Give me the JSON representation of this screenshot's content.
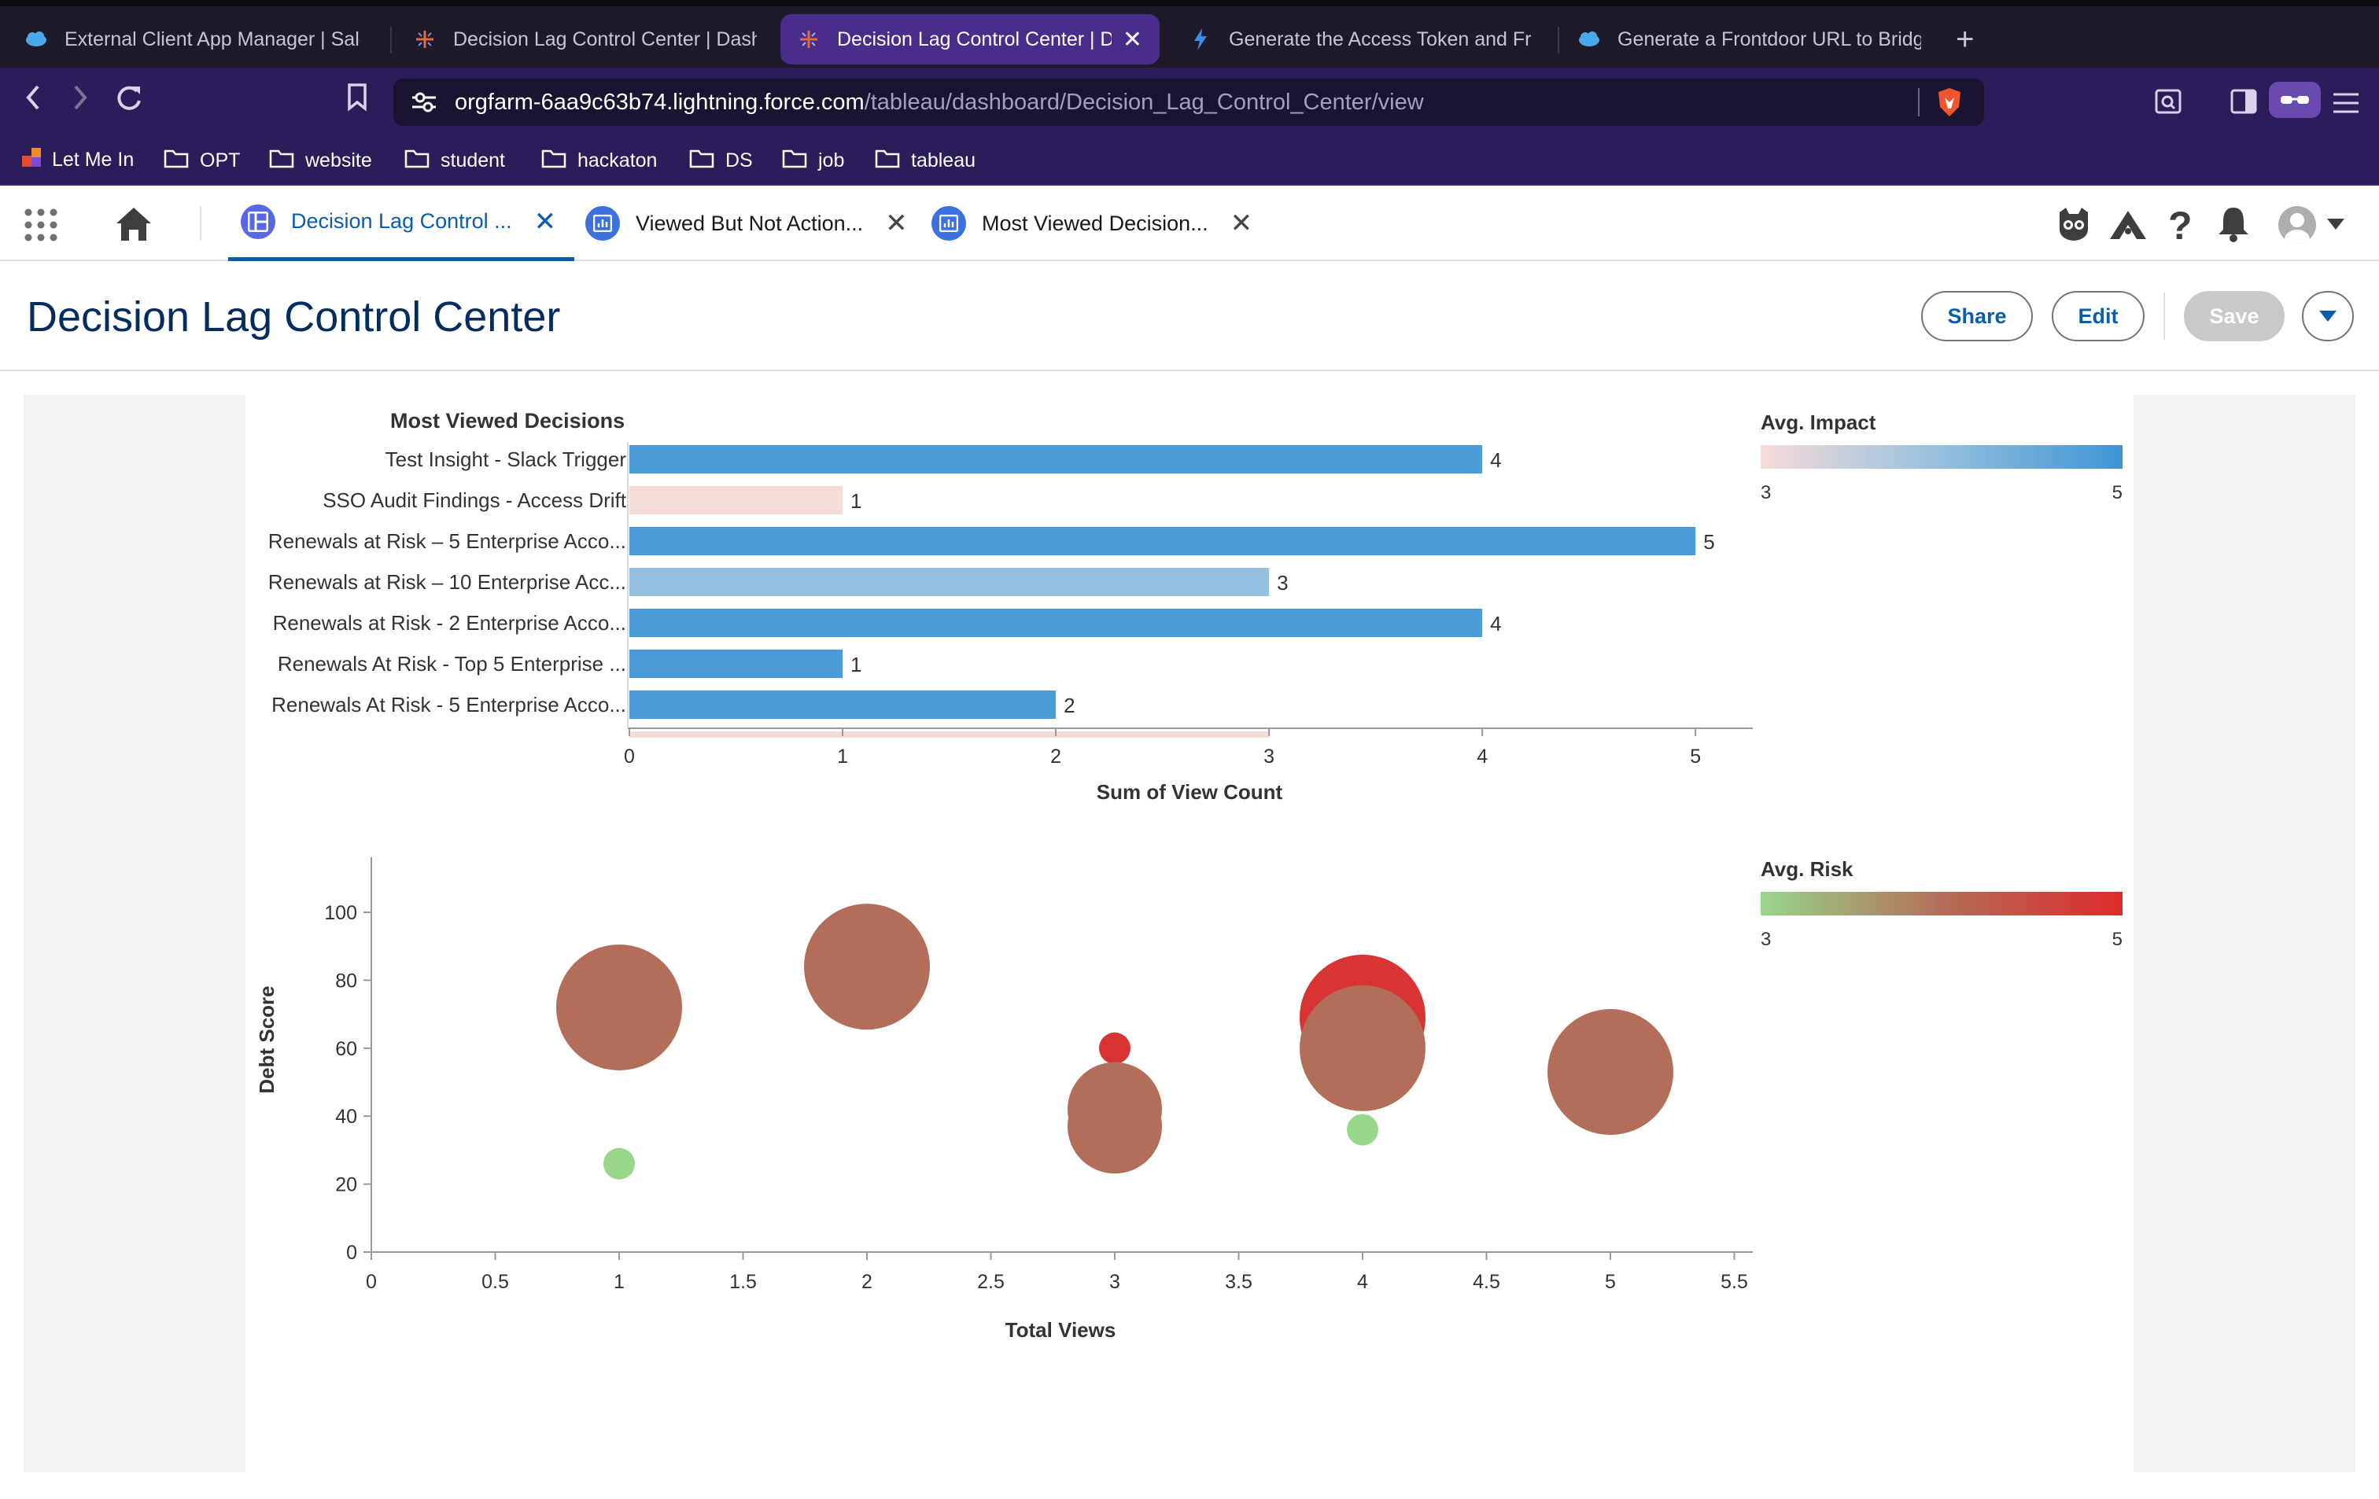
{
  "browser": {
    "tabs": [
      {
        "title": "External Client App Manager | Sale",
        "icon": "salesforce-cloud-icon",
        "active": false
      },
      {
        "title": "Decision Lag Control Center | Dash",
        "icon": "tableau-icon",
        "active": false
      },
      {
        "title": "Decision Lag Control Center | D",
        "icon": "tableau-icon",
        "active": true
      },
      {
        "title": "Generate the Access Token and Fr",
        "icon": "lightning-icon",
        "active": false
      },
      {
        "title": "Generate a Frontdoor URL to Bridg",
        "icon": "salesforce-cloud-icon",
        "active": false
      }
    ],
    "url_host": "orgfarm-6aa9c63b74.lightning.force.com",
    "url_path": "/tableau/dashboard/Decision_Lag_Control_Center/view",
    "bookmarks": [
      {
        "label": "Let Me In",
        "icon": "app-icon"
      },
      {
        "label": "OPT",
        "icon": "folder-icon"
      },
      {
        "label": "website",
        "icon": "folder-icon"
      },
      {
        "label": "student",
        "icon": "folder-icon"
      },
      {
        "label": "hackaton",
        "icon": "folder-icon"
      },
      {
        "label": "DS",
        "icon": "folder-icon"
      },
      {
        "label": "job",
        "icon": "folder-icon"
      },
      {
        "label": "tableau",
        "icon": "folder-icon"
      }
    ]
  },
  "workspace_tabs": [
    {
      "label": "Decision Lag Control ...",
      "active": true
    },
    {
      "label": "Viewed But Not Action...",
      "active": false
    },
    {
      "label": "Most Viewed Decision...",
      "active": false
    }
  ],
  "page": {
    "title": "Decision Lag Control Center",
    "buttons": {
      "share": "Share",
      "edit": "Edit",
      "save": "Save"
    }
  },
  "colors": {
    "bar_high": "#4a9bd6",
    "bar_mid": "#94bfde",
    "bar_low": "#f6dcd9",
    "bubble_main": "#b36e59",
    "bubble_red": "#d93434",
    "bubble_green": "#98d68a"
  },
  "chart_data": [
    {
      "type": "bar",
      "orientation": "horizontal",
      "title": "Most Viewed Decisions",
      "xlabel": "Sum of View Count",
      "xlim": [
        0,
        5.2
      ],
      "xticks": [
        "0",
        "1",
        "2",
        "3",
        "4",
        "5"
      ],
      "categories": [
        "Test Insight - Slack Trigger",
        "SSO Audit Findings - Access Drift",
        "Renewals at Risk – 5 Enterprise Acco...",
        "Renewals at Risk – 10 Enterprise Acc...",
        "Renewals at Risk - 2 Enterprise Acco...",
        "Renewals At Risk - Top 5 Enterprise ...",
        "Renewals At Risk - 5 Enterprise Acco..."
      ],
      "values": [
        4,
        1,
        5,
        3,
        4,
        1,
        2
      ],
      "impact": [
        5,
        3,
        5,
        4,
        5,
        5,
        5
      ],
      "value_labels": [
        "4",
        "1",
        "5",
        "3",
        "4",
        "1",
        "2"
      ],
      "color_legend": {
        "title": "Avg. Impact",
        "min": "3",
        "max": "5"
      }
    },
    {
      "type": "scatter",
      "xlabel": "Total Views",
      "ylabel": "Debt Score",
      "xlim": [
        0,
        5.6
      ],
      "ylim": [
        0,
        115
      ],
      "xticks": [
        "0",
        "0.5",
        "1",
        "1.5",
        "2",
        "2.5",
        "3",
        "3.5",
        "4",
        "4.5",
        "5",
        "5.5"
      ],
      "yticks": [
        "0",
        "20",
        "40",
        "60",
        "80",
        "100"
      ],
      "points": [
        {
          "x": 1,
          "y": 72,
          "size": "large",
          "risk": 4
        },
        {
          "x": 1,
          "y": 26,
          "size": "small",
          "risk": 3
        },
        {
          "x": 2,
          "y": 84,
          "size": "large",
          "risk": 4
        },
        {
          "x": 3,
          "y": 60,
          "size": "small",
          "risk": 5
        },
        {
          "x": 3,
          "y": 42,
          "size": "medium",
          "risk": 4
        },
        {
          "x": 3,
          "y": 37,
          "size": "medium",
          "risk": 4
        },
        {
          "x": 4,
          "y": 69,
          "size": "large",
          "risk": 5
        },
        {
          "x": 4,
          "y": 60,
          "size": "large",
          "risk": 4
        },
        {
          "x": 4,
          "y": 36,
          "size": "small",
          "risk": 3
        },
        {
          "x": 5,
          "y": 53,
          "size": "large",
          "risk": 4
        }
      ],
      "color_legend": {
        "title": "Avg. Risk",
        "min": "3",
        "max": "5"
      }
    }
  ]
}
